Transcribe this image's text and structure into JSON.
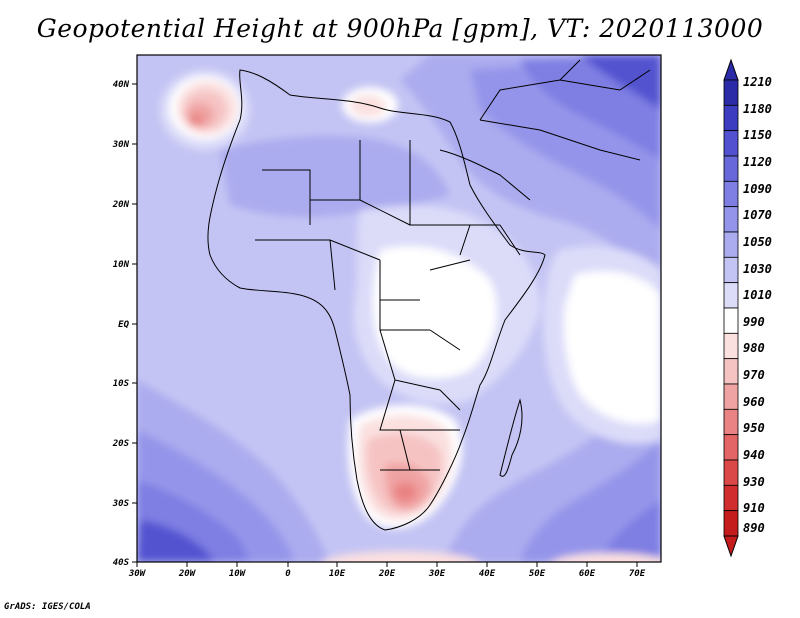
{
  "title": "Geopotential Height at 900hPa [gpm], VT: 2020113000",
  "credit": "GrADS: IGES/COLA",
  "map": {
    "lon_labels": [
      "30W",
      "20W",
      "10W",
      "0",
      "10E",
      "20E",
      "30E",
      "40E",
      "50E",
      "60E",
      "70E"
    ],
    "lat_labels": [
      "40N",
      "30N",
      "20N",
      "10N",
      "EQ",
      "10S",
      "20S",
      "30S",
      "40S"
    ]
  },
  "colorbar": {
    "labels": [
      "1210",
      "1180",
      "1150",
      "1120",
      "1090",
      "1070",
      "1050",
      "1030",
      "1010",
      "990",
      "980",
      "970",
      "960",
      "950",
      "940",
      "930",
      "910",
      "890"
    ],
    "colors": [
      "#2b2ba8",
      "#3c3cc0",
      "#5252d0",
      "#6868da",
      "#7e7ee3",
      "#9494ea",
      "#ababef",
      "#c4c4f4",
      "#dcdcf9",
      "#ffffff",
      "#fbe0e0",
      "#f6c3c3",
      "#f0a3a3",
      "#ea8484",
      "#e36565",
      "#db4848",
      "#d02e2e",
      "#c41c1c"
    ]
  }
}
